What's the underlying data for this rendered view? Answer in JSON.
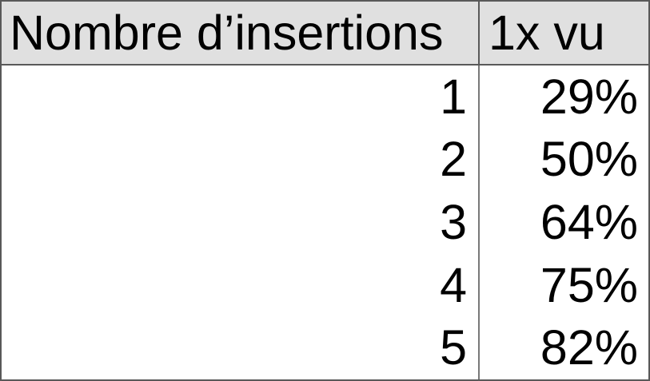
{
  "table": {
    "header": {
      "col1": "Nombre d’insertions",
      "col2": "1x vu"
    },
    "rows": [
      {
        "insertions": "1",
        "vu": "29%"
      },
      {
        "insertions": "2",
        "vu": "50%"
      },
      {
        "insertions": "3",
        "vu": "64%"
      },
      {
        "insertions": "4",
        "vu": "75%"
      },
      {
        "insertions": "5",
        "vu": "82%"
      }
    ]
  },
  "colors": {
    "header_background": "#e0e0e0",
    "border": "#595959",
    "divider": "#787878",
    "text": "#000000",
    "body_background": "#ffffff"
  },
  "chart_data": {
    "type": "table",
    "columns": [
      "Nombre d’insertions",
      "1x vu"
    ],
    "rows": [
      [
        1,
        "29%"
      ],
      [
        2,
        "50%"
      ],
      [
        3,
        "64%"
      ],
      [
        4,
        "75%"
      ],
      [
        5,
        "82%"
      ]
    ],
    "insertions": [
      1,
      2,
      3,
      4,
      5
    ],
    "vu_1x_percent": [
      29,
      50,
      64,
      75,
      82
    ]
  }
}
